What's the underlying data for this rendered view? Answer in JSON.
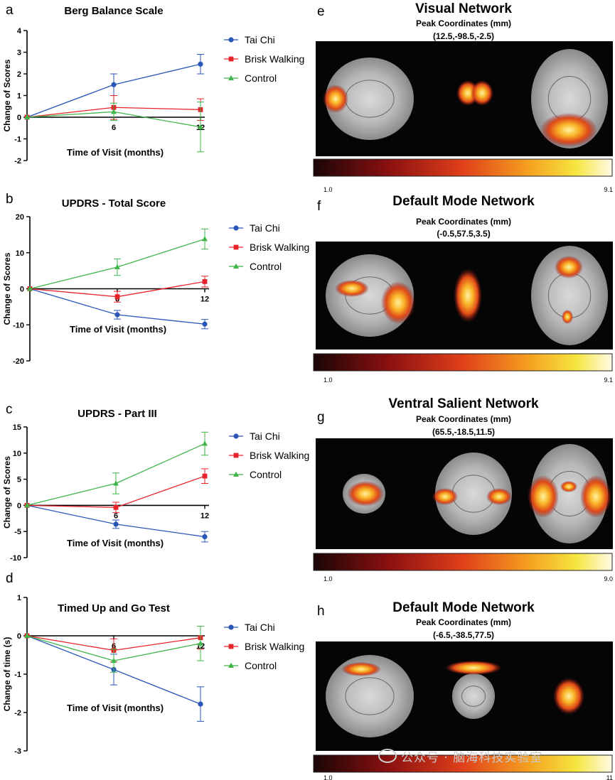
{
  "chart_data": [
    {
      "type": "line",
      "panel": "a",
      "title": "Berg Balance Scale",
      "xlabel": "Time of Visit (months)",
      "ylabel": "Change of  Scores",
      "x": [
        0,
        6,
        12
      ],
      "x_tick_labels": [
        "6",
        "12"
      ],
      "ylim": [
        -2,
        4
      ],
      "y_ticks": [
        -2,
        -1,
        0,
        1,
        2,
        3,
        4
      ],
      "legend": "right",
      "series": [
        {
          "name": "Tai Chi",
          "color": "#2a56b8",
          "marker": "circle",
          "values": [
            0,
            1.5,
            2.45
          ],
          "errors": [
            0,
            0.5,
            0.45
          ]
        },
        {
          "name": "Brisk Walking",
          "color": "#e8222a",
          "marker": "square",
          "values": [
            0,
            0.45,
            0.35
          ],
          "errors": [
            0,
            0.55,
            0.5
          ]
        },
        {
          "name": "Control",
          "color": "#3fb54a",
          "marker": "triangle",
          "values": [
            0,
            0.25,
            -0.45
          ],
          "errors": [
            0,
            0.4,
            1.15
          ]
        }
      ]
    },
    {
      "type": "line",
      "panel": "b",
      "title": "UPDRS - Total Score",
      "xlabel": "Time of Visit (months)",
      "ylabel": "Change of  Scores",
      "x": [
        0,
        6,
        12
      ],
      "x_tick_labels": [
        "6",
        "12"
      ],
      "ylim": [
        -20,
        20
      ],
      "y_ticks": [
        -20,
        -10,
        0,
        10,
        20
      ],
      "legend": "right",
      "series": [
        {
          "name": "Tai Chi",
          "color": "#2a56b8",
          "marker": "circle",
          "values": [
            0,
            -7.2,
            -9.8
          ],
          "errors": [
            0,
            1.2,
            1.3
          ]
        },
        {
          "name": "Brisk Walking",
          "color": "#e8222a",
          "marker": "square",
          "values": [
            0,
            -2.2,
            2.0
          ],
          "errors": [
            0,
            1.5,
            1.5
          ]
        },
        {
          "name": "Control",
          "color": "#3fb54a",
          "marker": "triangle",
          "values": [
            0,
            6.0,
            13.8
          ],
          "errors": [
            0,
            2.3,
            2.8
          ]
        }
      ]
    },
    {
      "type": "line",
      "panel": "c",
      "title": "UPDRS - Part III",
      "xlabel": "Time of Visit (months)",
      "ylabel": "Change of  Scores",
      "x": [
        0,
        6,
        12
      ],
      "x_tick_labels": [
        "6",
        "12"
      ],
      "ylim": [
        -10,
        15
      ],
      "y_ticks": [
        -10,
        -5,
        0,
        5,
        10,
        15
      ],
      "legend": "right",
      "series": [
        {
          "name": "Tai Chi",
          "color": "#2a56b8",
          "marker": "circle",
          "values": [
            0,
            -3.6,
            -6.0
          ],
          "errors": [
            0,
            0.8,
            1.0
          ]
        },
        {
          "name": "Brisk Walking",
          "color": "#e8222a",
          "marker": "square",
          "values": [
            0,
            -0.4,
            5.6
          ],
          "errors": [
            0,
            1.0,
            1.4
          ]
        },
        {
          "name": "Control",
          "color": "#3fb54a",
          "marker": "triangle",
          "values": [
            0,
            4.2,
            11.8
          ],
          "errors": [
            0,
            2.0,
            2.2
          ]
        }
      ]
    },
    {
      "type": "line",
      "panel": "d",
      "title": "Timed Up and Go Test",
      "xlabel": "Time of Visit (months)",
      "ylabel": "Change of time (s)",
      "x": [
        0,
        6,
        12
      ],
      "x_tick_labels": [
        "6",
        "12"
      ],
      "ylim": [
        -3,
        1
      ],
      "y_ticks": [
        -3,
        -2,
        -1,
        0,
        1
      ],
      "legend": "right",
      "series": [
        {
          "name": "Tai Chi",
          "color": "#2a56b8",
          "marker": "circle",
          "values": [
            0,
            -0.88,
            -1.78
          ],
          "errors": [
            0,
            0.4,
            0.45
          ]
        },
        {
          "name": "Brisk Walking",
          "color": "#e8222a",
          "marker": "square",
          "values": [
            0,
            -0.38,
            -0.05
          ],
          "errors": [
            0,
            0.3,
            0.3
          ]
        },
        {
          "name": "Control",
          "color": "#3fb54a",
          "marker": "triangle",
          "values": [
            0,
            -0.65,
            -0.2
          ],
          "errors": [
            0,
            0.3,
            0.45
          ]
        }
      ]
    }
  ],
  "brain_panels": [
    {
      "letter": "e",
      "title": "Visual Network",
      "subtitle": "Peak Coordinates (mm)",
      "coords": "(12.5,-98.5,-2.5)",
      "scale_min": "1.0",
      "scale_max": "9.1"
    },
    {
      "letter": "f",
      "title": "Default Mode Network",
      "subtitle": "Peak Coordinates (mm)",
      "coords": "(-0.5,57.5,3.5)",
      "scale_min": "1.0",
      "scale_max": "9.1"
    },
    {
      "letter": "g",
      "title": "Ventral Salient Network",
      "subtitle": "Peak Coordinates (mm)",
      "coords": "(65.5,-18.5,11.5)",
      "scale_min": "1.0",
      "scale_max": "9.0"
    },
    {
      "letter": "h",
      "title": "Default Mode Network",
      "subtitle": "Peak Coordinates (mm)",
      "coords": "(-6.5,-38.5,77.5)",
      "scale_min": "1.0",
      "scale_max": "11"
    }
  ],
  "watermark": "公众号 · 脑海科技实验室"
}
